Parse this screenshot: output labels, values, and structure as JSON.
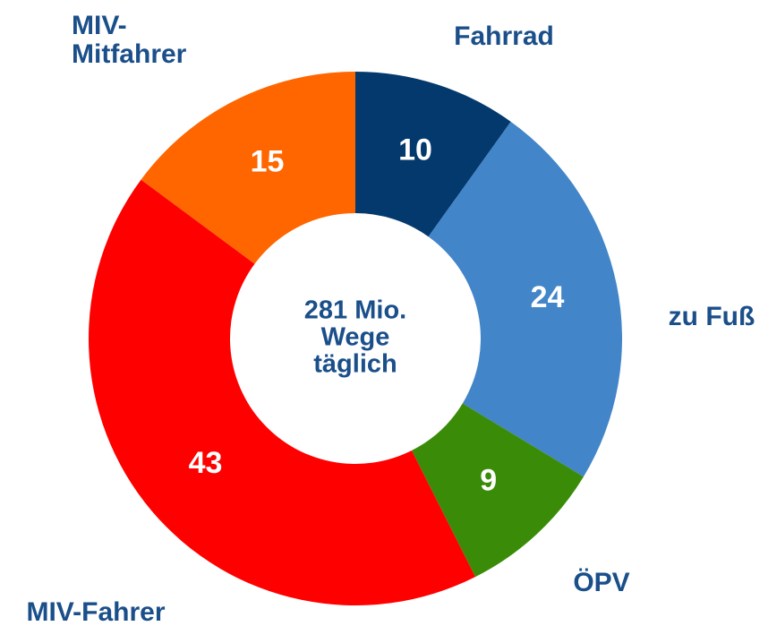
{
  "chart_data": {
    "type": "donut",
    "categories": [
      "Fahrrad",
      "zu Fuß",
      "ÖPV",
      "MIV-Fahrer",
      "MIV-Mitfahrer"
    ],
    "values": [
      10,
      24,
      9,
      43,
      15
    ],
    "colors": [
      "#03396c",
      "#4285c8",
      "#3a8c08",
      "#ff0000",
      "#ff6600"
    ],
    "center_label": [
      "281 Mio.",
      "Wege",
      "täglich"
    ]
  }
}
